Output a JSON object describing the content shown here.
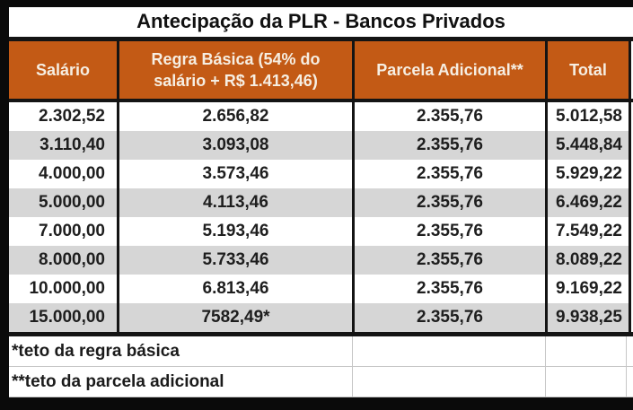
{
  "colors": {
    "header_bg": "#C35A15",
    "header_text": "#F6EEE2",
    "row_alt_bg": "#D6D6D6",
    "border_dark": "#141414",
    "gridline_light": "#C6C6C6",
    "frame_bg": "#0a0a0a"
  },
  "chart_data": {
    "type": "table",
    "title": "Antecipação da PLR - Bancos Privados",
    "columns": [
      "Salário",
      "Regra Básica (54% do salário + R$ 1.413,46)",
      "Parcela Adicional**",
      "Total"
    ],
    "rows": [
      [
        "2.302,52",
        "2.656,82",
        "2.355,76",
        "5.012,58"
      ],
      [
        "3.110,40",
        "3.093,08",
        "2.355,76",
        "5.448,84"
      ],
      [
        "4.000,00",
        "3.573,46",
        "2.355,76",
        "5.929,22"
      ],
      [
        "5.000,00",
        "4.113,46",
        "2.355,76",
        "6.469,22"
      ],
      [
        "7.000,00",
        "5.193,46",
        "2.355,76",
        "7.549,22"
      ],
      [
        "8.000,00",
        "5.733,46",
        "2.355,76",
        "8.089,22"
      ],
      [
        "10.000,00",
        "6.813,46",
        "2.355,76",
        "9.169,22"
      ],
      [
        "15.000,00",
        "7582,49*",
        "2.355,76",
        "9.938,25"
      ]
    ],
    "footnotes": [
      "*teto da regra básica",
      "**teto da parcela adicional"
    ]
  }
}
